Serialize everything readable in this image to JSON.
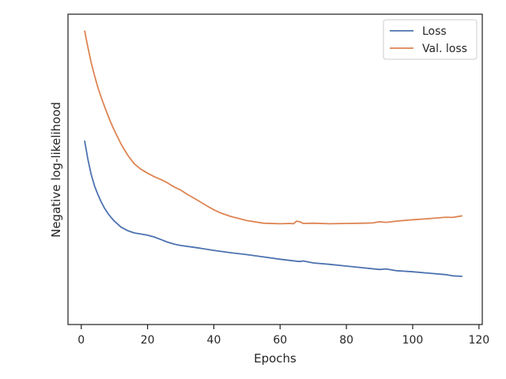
{
  "chart_data": {
    "type": "line",
    "xlabel": "Epochs",
    "ylabel": "Negative log-likelihood",
    "xlim": [
      -4,
      121
    ],
    "ylim": [
      0,
      1
    ],
    "xticks": [
      0,
      20,
      40,
      60,
      80,
      100,
      120
    ],
    "yticks_shown": false,
    "grid": false,
    "legend_position": "top-right",
    "series": [
      {
        "name": "Loss",
        "color": "#4c72b0",
        "points": [
          [
            1,
            0.591
          ],
          [
            2,
            0.525
          ],
          [
            3,
            0.473
          ],
          [
            4,
            0.433
          ],
          [
            5,
            0.403
          ],
          [
            6,
            0.377
          ],
          [
            7,
            0.355
          ],
          [
            8,
            0.337
          ],
          [
            9,
            0.322
          ],
          [
            10,
            0.309
          ],
          [
            12,
            0.288
          ],
          [
            14,
            0.276
          ],
          [
            16,
            0.268
          ],
          [
            18,
            0.264
          ],
          [
            20,
            0.26
          ],
          [
            22,
            0.254
          ],
          [
            24,
            0.245
          ],
          [
            26,
            0.236
          ],
          [
            28,
            0.229
          ],
          [
            30,
            0.224
          ],
          [
            35,
            0.216
          ],
          [
            40,
            0.207
          ],
          [
            45,
            0.199
          ],
          [
            50,
            0.192
          ],
          [
            55,
            0.184
          ],
          [
            60,
            0.176
          ],
          [
            65,
            0.169
          ],
          [
            66,
            0.168
          ],
          [
            67,
            0.17
          ],
          [
            70,
            0.163
          ],
          [
            75,
            0.158
          ],
          [
            80,
            0.152
          ],
          [
            85,
            0.146
          ],
          [
            90,
            0.14
          ],
          [
            92,
            0.142
          ],
          [
            95,
            0.136
          ],
          [
            100,
            0.132
          ],
          [
            105,
            0.127
          ],
          [
            110,
            0.122
          ],
          [
            112,
            0.118
          ],
          [
            115,
            0.116
          ]
        ]
      },
      {
        "name": "Val. loss",
        "color": "#dd8452",
        "points": [
          [
            1,
            0.976
          ],
          [
            2,
            0.917
          ],
          [
            3,
            0.864
          ],
          [
            4,
            0.819
          ],
          [
            5,
            0.778
          ],
          [
            6,
            0.743
          ],
          [
            7,
            0.711
          ],
          [
            8,
            0.681
          ],
          [
            9,
            0.652
          ],
          [
            10,
            0.626
          ],
          [
            12,
            0.579
          ],
          [
            14,
            0.54
          ],
          [
            16,
            0.51
          ],
          [
            18,
            0.491
          ],
          [
            20,
            0.477
          ],
          [
            22,
            0.465
          ],
          [
            24,
            0.455
          ],
          [
            26,
            0.443
          ],
          [
            28,
            0.429
          ],
          [
            30,
            0.418
          ],
          [
            32,
            0.403
          ],
          [
            35,
            0.383
          ],
          [
            38,
            0.362
          ],
          [
            40,
            0.349
          ],
          [
            42,
            0.338
          ],
          [
            45,
            0.326
          ],
          [
            50,
            0.311
          ],
          [
            55,
            0.302
          ],
          [
            60,
            0.3
          ],
          [
            63,
            0.301
          ],
          [
            64,
            0.3
          ],
          [
            65,
            0.309
          ],
          [
            66,
            0.307
          ],
          [
            67,
            0.301
          ],
          [
            70,
            0.302
          ],
          [
            75,
            0.3
          ],
          [
            80,
            0.301
          ],
          [
            85,
            0.302
          ],
          [
            88,
            0.303
          ],
          [
            90,
            0.307
          ],
          [
            92,
            0.305
          ],
          [
            95,
            0.309
          ],
          [
            100,
            0.314
          ],
          [
            105,
            0.318
          ],
          [
            110,
            0.323
          ],
          [
            112,
            0.322
          ],
          [
            115,
            0.328
          ]
        ]
      }
    ]
  }
}
